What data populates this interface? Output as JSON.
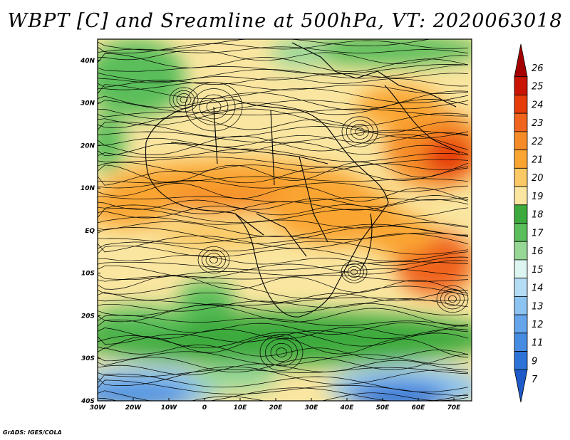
{
  "title": "WBPT [C] and Sreamline at 500hPa, VT: 2020063018",
  "credit": "GrADS: IGES/COLA",
  "map": {
    "lon_range": [
      -30,
      75
    ],
    "lat_range": [
      -40,
      45
    ],
    "lon_ticks": [
      {
        "lon": -30,
        "label": "30W"
      },
      {
        "lon": -20,
        "label": "20W"
      },
      {
        "lon": -10,
        "label": "10W"
      },
      {
        "lon": 0,
        "label": "0"
      },
      {
        "lon": 10,
        "label": "10E"
      },
      {
        "lon": 20,
        "label": "20E"
      },
      {
        "lon": 30,
        "label": "30E"
      },
      {
        "lon": 40,
        "label": "40E"
      },
      {
        "lon": 50,
        "label": "50E"
      },
      {
        "lon": 60,
        "label": "60E"
      },
      {
        "lon": 70,
        "label": "70E"
      }
    ],
    "lat_ticks": [
      {
        "lat": 40,
        "label": "40N"
      },
      {
        "lat": 30,
        "label": "30N"
      },
      {
        "lat": 20,
        "label": "20N"
      },
      {
        "lat": 10,
        "label": "10N"
      },
      {
        "lat": 0,
        "label": "EQ"
      },
      {
        "lat": -10,
        "label": "10S"
      },
      {
        "lat": -20,
        "label": "20S"
      },
      {
        "lat": -30,
        "label": "30S"
      },
      {
        "lat": -40,
        "label": "40S"
      }
    ]
  },
  "colorbar": {
    "levels": [
      {
        "label": "26",
        "color": "#a50000"
      },
      {
        "label": "25",
        "color": "#c81400"
      },
      {
        "label": "24",
        "color": "#e63c0a"
      },
      {
        "label": "23",
        "color": "#f0641e"
      },
      {
        "label": "22",
        "color": "#f58c28"
      },
      {
        "label": "21",
        "color": "#faa532"
      },
      {
        "label": "20",
        "color": "#fac864"
      },
      {
        "label": "19",
        "color": "#fae6a0"
      },
      {
        "label": "18",
        "color": "#3caa3c"
      },
      {
        "label": "17",
        "color": "#5abe5a"
      },
      {
        "label": "16",
        "color": "#96d796"
      },
      {
        "label": "15",
        "color": "#dcf5f0"
      },
      {
        "label": "14",
        "color": "#b4dcf5"
      },
      {
        "label": "13",
        "color": "#8cc3f0"
      },
      {
        "label": "12",
        "color": "#64a5eb"
      },
      {
        "label": "11",
        "color": "#468ce1"
      },
      {
        "label": "9",
        "color": "#2d73d7"
      },
      {
        "label": "7",
        "color": "#1e5ac8"
      }
    ]
  }
}
